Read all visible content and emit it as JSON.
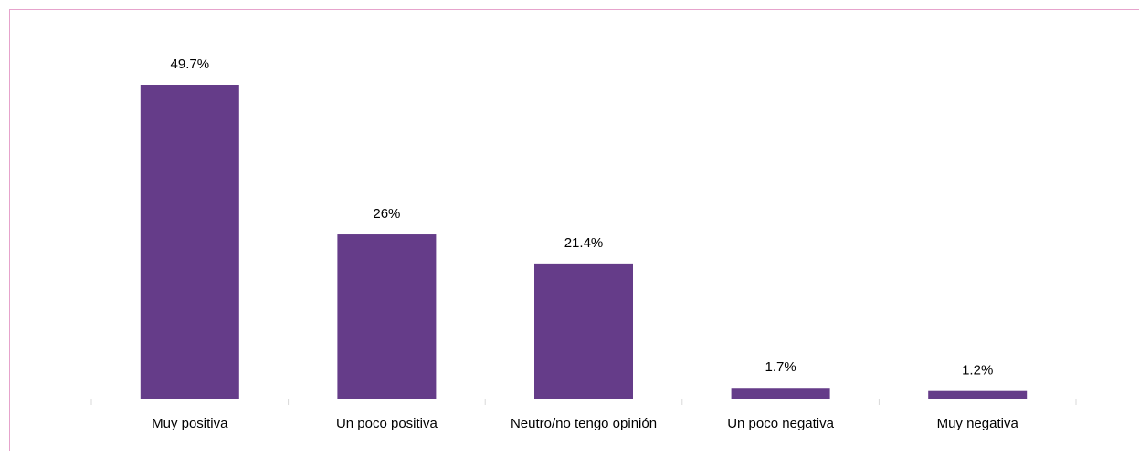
{
  "chart_data": {
    "type": "bar",
    "categories": [
      "Muy positiva",
      "Un poco positiva",
      "Neutro/no tengo opinión",
      "Un poco negativa",
      "Muy negativa"
    ],
    "values": [
      49.7,
      26,
      21.4,
      1.7,
      1.2
    ],
    "value_labels": [
      "49.7%",
      "26%",
      "21.4%",
      "1.7%",
      "1.2%"
    ],
    "color": "#653c89"
  }
}
